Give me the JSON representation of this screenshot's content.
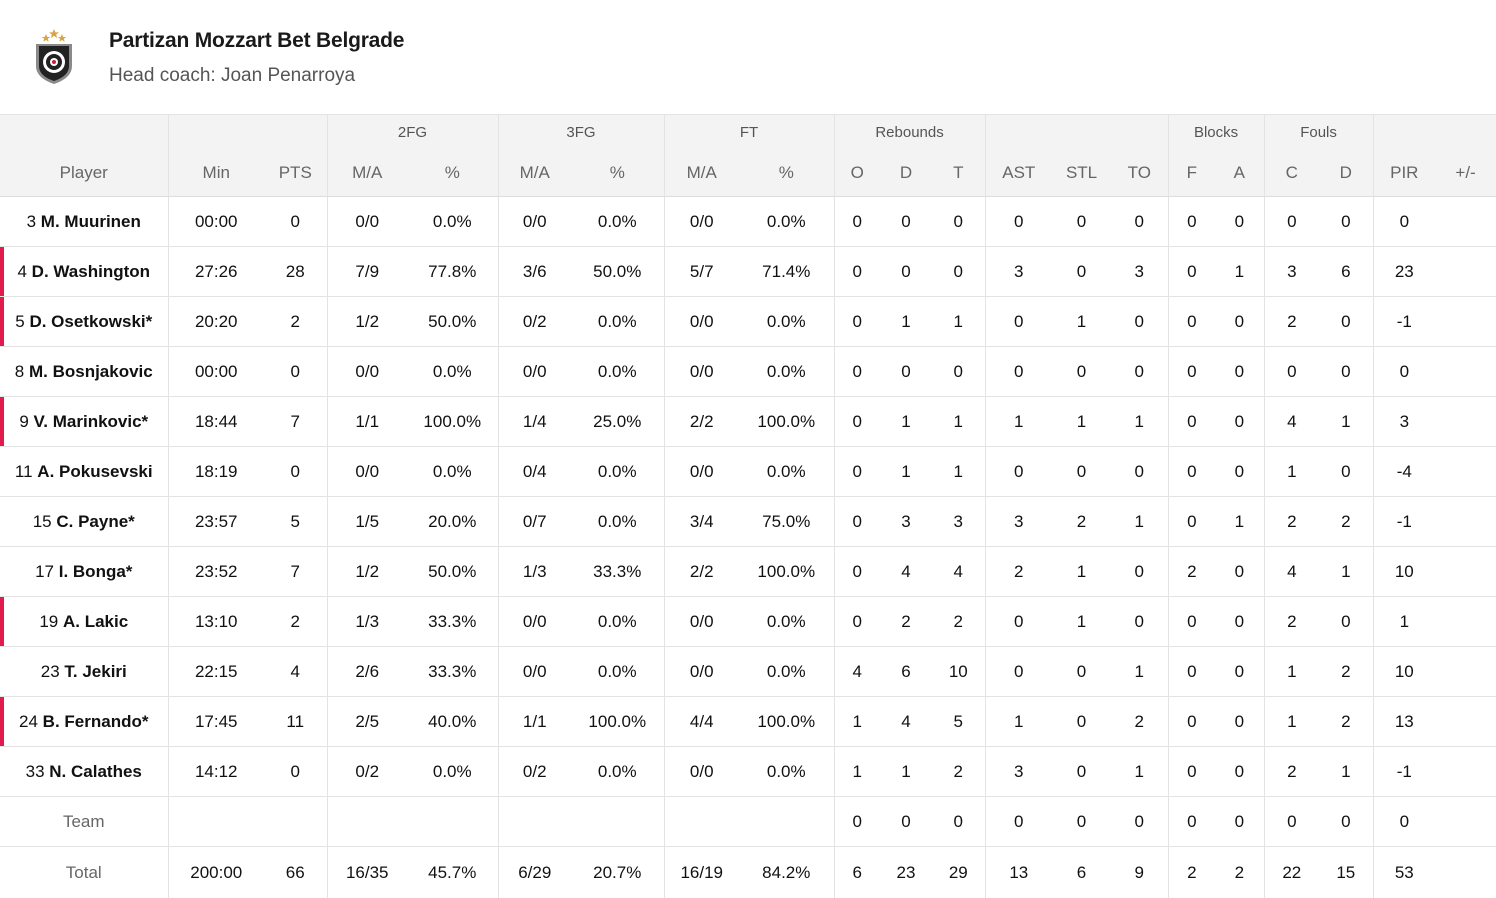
{
  "team": {
    "name": "Partizan Mozzart Bet Belgrade",
    "coach_line": "Head coach: Joan Penarroya"
  },
  "accent_color": "#e21b4d",
  "groups": {
    "fg2": "2FG",
    "fg3": "3FG",
    "ft": "FT",
    "reb": "Rebounds",
    "blk": "Blocks",
    "fouls": "Fouls"
  },
  "columns": [
    "Player",
    "Min",
    "PTS",
    "M/A",
    "%",
    "M/A",
    "%",
    "M/A",
    "%",
    "O",
    "D",
    "T",
    "AST",
    "STL",
    "TO",
    "F",
    "A",
    "C",
    "D",
    "PIR",
    "+/-"
  ],
  "rows": [
    {
      "num": "3",
      "name": "M. Muurinen",
      "marked": false,
      "stats": [
        "00:00",
        "0",
        "0/0",
        "0.0%",
        "0/0",
        "0.0%",
        "0/0",
        "0.0%",
        "0",
        "0",
        "0",
        "0",
        "0",
        "0",
        "0",
        "0",
        "0",
        "0",
        "0",
        ""
      ]
    },
    {
      "num": "4",
      "name": "D. Washington",
      "marked": true,
      "stats": [
        "27:26",
        "28",
        "7/9",
        "77.8%",
        "3/6",
        "50.0%",
        "5/7",
        "71.4%",
        "0",
        "0",
        "0",
        "3",
        "0",
        "3",
        "0",
        "1",
        "3",
        "6",
        "23",
        ""
      ]
    },
    {
      "num": "5",
      "name": "D. Osetkowski*",
      "marked": true,
      "stats": [
        "20:20",
        "2",
        "1/2",
        "50.0%",
        "0/2",
        "0.0%",
        "0/0",
        "0.0%",
        "0",
        "1",
        "1",
        "0",
        "1",
        "0",
        "0",
        "0",
        "2",
        "0",
        "-1",
        ""
      ]
    },
    {
      "num": "8",
      "name": "M. Bosnjakovic",
      "marked": false,
      "stats": [
        "00:00",
        "0",
        "0/0",
        "0.0%",
        "0/0",
        "0.0%",
        "0/0",
        "0.0%",
        "0",
        "0",
        "0",
        "0",
        "0",
        "0",
        "0",
        "0",
        "0",
        "0",
        "0",
        ""
      ]
    },
    {
      "num": "9",
      "name": "V. Marinkovic*",
      "marked": true,
      "stats": [
        "18:44",
        "7",
        "1/1",
        "100.0%",
        "1/4",
        "25.0%",
        "2/2",
        "100.0%",
        "0",
        "1",
        "1",
        "1",
        "1",
        "1",
        "0",
        "0",
        "4",
        "1",
        "3",
        ""
      ]
    },
    {
      "num": "11",
      "name": "A. Pokusevski",
      "marked": false,
      "stats": [
        "18:19",
        "0",
        "0/0",
        "0.0%",
        "0/4",
        "0.0%",
        "0/0",
        "0.0%",
        "0",
        "1",
        "1",
        "0",
        "0",
        "0",
        "0",
        "0",
        "1",
        "0",
        "-4",
        ""
      ]
    },
    {
      "num": "15",
      "name": "C. Payne*",
      "marked": false,
      "stats": [
        "23:57",
        "5",
        "1/5",
        "20.0%",
        "0/7",
        "0.0%",
        "3/4",
        "75.0%",
        "0",
        "3",
        "3",
        "3",
        "2",
        "1",
        "0",
        "1",
        "2",
        "2",
        "-1",
        ""
      ]
    },
    {
      "num": "17",
      "name": "I. Bonga*",
      "marked": false,
      "stats": [
        "23:52",
        "7",
        "1/2",
        "50.0%",
        "1/3",
        "33.3%",
        "2/2",
        "100.0%",
        "0",
        "4",
        "4",
        "2",
        "1",
        "0",
        "2",
        "0",
        "4",
        "1",
        "10",
        ""
      ]
    },
    {
      "num": "19",
      "name": "A. Lakic",
      "marked": true,
      "stats": [
        "13:10",
        "2",
        "1/3",
        "33.3%",
        "0/0",
        "0.0%",
        "0/0",
        "0.0%",
        "0",
        "2",
        "2",
        "0",
        "1",
        "0",
        "0",
        "0",
        "2",
        "0",
        "1",
        ""
      ]
    },
    {
      "num": "23",
      "name": "T. Jekiri",
      "marked": false,
      "stats": [
        "22:15",
        "4",
        "2/6",
        "33.3%",
        "0/0",
        "0.0%",
        "0/0",
        "0.0%",
        "4",
        "6",
        "10",
        "0",
        "0",
        "1",
        "0",
        "0",
        "1",
        "2",
        "10",
        ""
      ]
    },
    {
      "num": "24",
      "name": "B. Fernando*",
      "marked": true,
      "stats": [
        "17:45",
        "11",
        "2/5",
        "40.0%",
        "1/1",
        "100.0%",
        "4/4",
        "100.0%",
        "1",
        "4",
        "5",
        "1",
        "0",
        "2",
        "0",
        "0",
        "1",
        "2",
        "13",
        ""
      ]
    },
    {
      "num": "33",
      "name": "N. Calathes",
      "marked": false,
      "stats": [
        "14:12",
        "0",
        "0/2",
        "0.0%",
        "0/2",
        "0.0%",
        "0/0",
        "0.0%",
        "1",
        "1",
        "2",
        "3",
        "0",
        "1",
        "0",
        "0",
        "2",
        "1",
        "-1",
        ""
      ]
    }
  ],
  "team_row": {
    "label": "Team",
    "stats": [
      "",
      "",
      "",
      "",
      "",
      "",
      "",
      "",
      "0",
      "0",
      "0",
      "0",
      "0",
      "0",
      "0",
      "0",
      "0",
      "0",
      "0",
      ""
    ]
  },
  "total_row": {
    "label": "Total",
    "stats": [
      "200:00",
      "66",
      "16/35",
      "45.7%",
      "6/29",
      "20.7%",
      "16/19",
      "84.2%",
      "6",
      "23",
      "29",
      "13",
      "6",
      "9",
      "2",
      "2",
      "22",
      "15",
      "53",
      ""
    ]
  }
}
